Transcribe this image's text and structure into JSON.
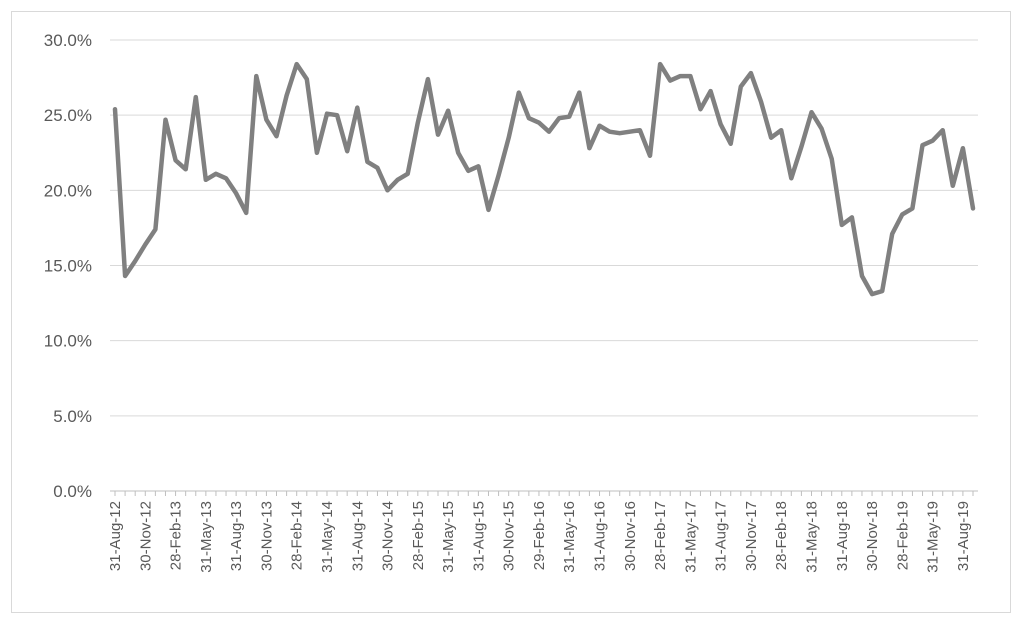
{
  "chart_data": {
    "type": "line",
    "title": "",
    "xlabel": "",
    "ylabel": "",
    "ylim": [
      0,
      0.3
    ],
    "y_ticks": [
      "0.0%",
      "5.0%",
      "10.0%",
      "15.0%",
      "20.0%",
      "25.0%",
      "30.0%"
    ],
    "grid": true,
    "legend": "none",
    "x_tick_labels": [
      "31-Aug-12",
      "30-Nov-12",
      "28-Feb-13",
      "31-May-13",
      "31-Aug-13",
      "30-Nov-13",
      "28-Feb-14",
      "31-May-14",
      "31-Aug-14",
      "30-Nov-14",
      "28-Feb-15",
      "31-May-15",
      "31-Aug-15",
      "30-Nov-15",
      "29-Feb-16",
      "31-May-16",
      "31-Aug-16",
      "30-Nov-16",
      "28-Feb-17",
      "31-May-17",
      "31-Aug-17",
      "30-Nov-17",
      "28-Feb-18",
      "31-May-18",
      "31-Aug-18",
      "30-Nov-18",
      "28-Feb-19",
      "31-May-19",
      "31-Aug-19"
    ],
    "series": [
      {
        "color": "#808080",
        "x": [
          "31-Aug-12",
          "30-Sep-12",
          "31-Oct-12",
          "30-Nov-12",
          "31-Dec-12",
          "31-Jan-13",
          "28-Feb-13",
          "31-Mar-13",
          "30-Apr-13",
          "31-May-13",
          "30-Jun-13",
          "31-Jul-13",
          "31-Aug-13",
          "30-Sep-13",
          "31-Oct-13",
          "30-Nov-13",
          "31-Dec-13",
          "31-Jan-14",
          "28-Feb-14",
          "31-Mar-14",
          "30-Apr-14",
          "31-May-14",
          "30-Jun-14",
          "31-Jul-14",
          "31-Aug-14",
          "30-Sep-14",
          "31-Oct-14",
          "30-Nov-14",
          "31-Dec-14",
          "31-Jan-15",
          "28-Feb-15",
          "31-Mar-15",
          "30-Apr-15",
          "31-May-15",
          "30-Jun-15",
          "31-Jul-15",
          "31-Aug-15",
          "30-Sep-15",
          "31-Oct-15",
          "30-Nov-15",
          "31-Dec-15",
          "31-Jan-16",
          "29-Feb-16",
          "31-Mar-16",
          "30-Apr-16",
          "31-May-16",
          "30-Jun-16",
          "31-Jul-16",
          "31-Aug-16",
          "30-Sep-16",
          "31-Oct-16",
          "30-Nov-16",
          "31-Dec-16",
          "31-Jan-17",
          "28-Feb-17",
          "31-Mar-17",
          "30-Apr-17",
          "31-May-17",
          "30-Jun-17",
          "31-Jul-17",
          "31-Aug-17",
          "30-Sep-17",
          "31-Oct-17",
          "30-Nov-17",
          "31-Dec-17",
          "31-Jan-18",
          "28-Feb-18",
          "31-Mar-18",
          "30-Apr-18",
          "31-May-18",
          "30-Jun-18",
          "31-Jul-18",
          "31-Aug-18",
          "30-Sep-18",
          "31-Oct-18",
          "30-Nov-18",
          "31-Dec-18",
          "31-Jan-19",
          "28-Feb-19",
          "31-Mar-19",
          "30-Apr-19",
          "31-May-19",
          "30-Jun-19",
          "31-Jul-19",
          "31-Aug-19",
          "30-Sep-19"
        ],
        "values": [
          0.254,
          0.143,
          0.153,
          0.164,
          0.174,
          0.247,
          0.22,
          0.214,
          0.262,
          0.207,
          0.211,
          0.208,
          0.198,
          0.185,
          0.276,
          0.247,
          0.236,
          0.263,
          0.284,
          0.274,
          0.225,
          0.251,
          0.25,
          0.226,
          0.255,
          0.219,
          0.215,
          0.2,
          0.207,
          0.211,
          0.245,
          0.274,
          0.237,
          0.253,
          0.225,
          0.213,
          0.216,
          0.187,
          0.21,
          0.235,
          0.265,
          0.248,
          0.245,
          0.239,
          0.248,
          0.249,
          0.265,
          0.228,
          0.243,
          0.239,
          0.238,
          0.239,
          0.24,
          0.223,
          0.284,
          0.273,
          0.276,
          0.276,
          0.254,
          0.266,
          0.244,
          0.231,
          0.269,
          0.278,
          0.259,
          0.235,
          0.24,
          0.208,
          0.229,
          0.252,
          0.241,
          0.221,
          0.177,
          0.182,
          0.143,
          0.131,
          0.133,
          0.171,
          0.184,
          0.188,
          0.23,
          0.233,
          0.24,
          0.203,
          0.228,
          0.188
        ]
      }
    ]
  }
}
